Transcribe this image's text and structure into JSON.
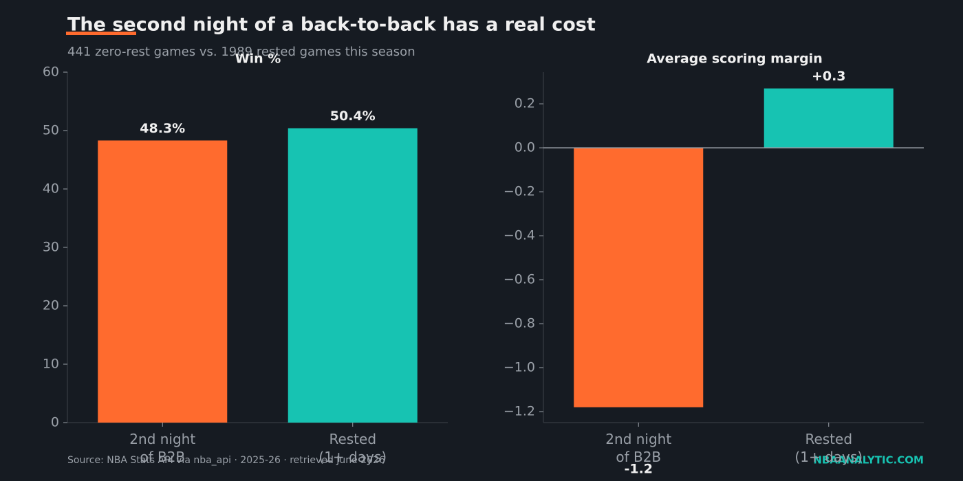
{
  "title": "The second night of a back-to-back has a real cost",
  "subtitle": "441 zero-rest games vs. 1989 rested games this season",
  "source": "Source: NBA Stats API via nba_api · 2025-26 · retrieved June 2026",
  "brand": "NBAANALYTIC.COM",
  "chart_data": [
    {
      "type": "bar",
      "title": "Win %",
      "categories": [
        "2nd night\nof B2B",
        "Rested\n(1+ days)"
      ],
      "values": [
        48.3,
        50.4
      ],
      "value_labels": [
        "48.3%",
        "50.4%"
      ],
      "colors": [
        "#ff6b2e",
        "#17c3b2"
      ],
      "ylim": [
        0,
        60
      ],
      "yticks": [
        0,
        10,
        20,
        30,
        40,
        50,
        60
      ],
      "grid": false
    },
    {
      "type": "bar",
      "title": "Average scoring margin",
      "categories": [
        "2nd night\nof B2B",
        "Rested\n(1+ days)"
      ],
      "values": [
        -1.18,
        0.27
      ],
      "value_labels": [
        "-1.2",
        "+0.3"
      ],
      "colors": [
        "#ff6b2e",
        "#17c3b2"
      ],
      "ylim": [
        -1.25,
        0.344
      ],
      "yticks": [
        {
          "value": -1.2,
          "label": "−1.2"
        },
        {
          "value": -1.0,
          "label": "−1.0"
        },
        {
          "value": -0.8,
          "label": "−0.8"
        },
        {
          "value": -0.6,
          "label": "−0.6"
        },
        {
          "value": -0.4,
          "label": "−0.4"
        },
        {
          "value": -0.2,
          "label": "−0.2"
        },
        {
          "value": 0.0,
          "label": "0.0"
        },
        {
          "value": 0.2,
          "label": "0.2"
        }
      ],
      "grid": false,
      "zero_line": true
    }
  ]
}
